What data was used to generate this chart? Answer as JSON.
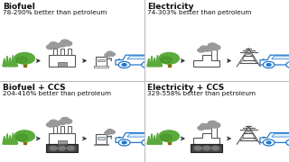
{
  "panels": [
    {
      "title": "Biofuel",
      "subtitle": "78-290% better than petroleum",
      "col": 0,
      "row": 0,
      "has_ccs": false,
      "output": "fuel"
    },
    {
      "title": "Electricity",
      "subtitle": "74-303% better than petroleum",
      "col": 1,
      "row": 0,
      "has_ccs": false,
      "output": "electricity"
    },
    {
      "title": "Biofuel + CCS",
      "subtitle": "204-416% better than petroleum",
      "col": 0,
      "row": 1,
      "has_ccs": true,
      "output": "fuel"
    },
    {
      "title": "Electricity + CCS",
      "subtitle": "329-558% better than petroleum",
      "col": 1,
      "row": 1,
      "has_ccs": true,
      "output": "electricity"
    }
  ],
  "colors": {
    "green": "#5aaa3c",
    "dark_green": "#3a8a1c",
    "gray_smoke": "#999999",
    "outline": "#555555",
    "blue_car": "#2277cc",
    "white": "#FFFFFF",
    "divider": "#bbbbbb",
    "text_dark": "#111111",
    "ccs_dark": "#444444",
    "ccs_mid": "#777777"
  },
  "title_fontsize": 6.5,
  "subtitle_fontsize": 5.2
}
